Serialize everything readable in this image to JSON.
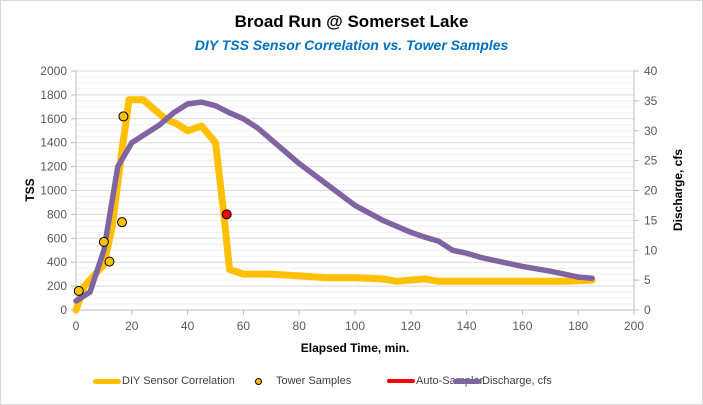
{
  "chart_data": {
    "type": "line",
    "title": "Broad Run @ Somerset Lake",
    "subtitle": "DIY TSS Sensor Correlation vs. Tower Samples",
    "xlabel": "Elapsed Time, min.",
    "ylabel": "TSS",
    "y2label": "Discharge, cfs",
    "xlim": [
      0,
      200
    ],
    "ylim": [
      0,
      2000
    ],
    "y2lim": [
      0,
      40
    ],
    "x_ticks": [
      "0",
      "20",
      "40",
      "60",
      "80",
      "100",
      "120",
      "140",
      "160",
      "180",
      "200"
    ],
    "y_ticks": [
      "0",
      "200",
      "400",
      "600",
      "800",
      "1000",
      "1200",
      "1400",
      "1600",
      "1800",
      "2000"
    ],
    "y2_ticks": [
      "0",
      "5",
      "10",
      "15",
      "20",
      "25",
      "30",
      "35",
      "40"
    ],
    "grid": true,
    "legend_position": "bottom",
    "series": [
      {
        "name": "DIY Sensor Correlation",
        "kind": "line",
        "axis": "left",
        "color": "#ffc000",
        "points": [
          [
            0,
            0
          ],
          [
            3,
            200
          ],
          [
            10,
            380
          ],
          [
            13,
            700
          ],
          [
            16,
            1250
          ],
          [
            19,
            1760
          ],
          [
            24,
            1760
          ],
          [
            32,
            1600
          ],
          [
            36,
            1560
          ],
          [
            40,
            1500
          ],
          [
            45,
            1540
          ],
          [
            50,
            1400
          ],
          [
            53,
            800
          ],
          [
            55,
            340
          ],
          [
            60,
            300
          ],
          [
            70,
            300
          ],
          [
            80,
            285
          ],
          [
            90,
            270
          ],
          [
            100,
            270
          ],
          [
            110,
            260
          ],
          [
            115,
            240
          ],
          [
            125,
            260
          ],
          [
            130,
            240
          ],
          [
            140,
            240
          ],
          [
            150,
            240
          ],
          [
            160,
            240
          ],
          [
            175,
            240
          ],
          [
            185,
            250
          ]
        ]
      },
      {
        "name": "Tower Samples",
        "kind": "scatter",
        "axis": "left",
        "color": "#ffc000",
        "points": [
          [
            1,
            160
          ],
          [
            10,
            570
          ],
          [
            12,
            405
          ],
          [
            16.5,
            735
          ],
          [
            17,
            1620
          ]
        ]
      },
      {
        "name": "Auto-Sampler",
        "kind": "scatter",
        "axis": "left",
        "color": "#ff0000",
        "points": [
          [
            54,
            800
          ]
        ]
      },
      {
        "name": "Discharge, cfs",
        "kind": "line",
        "axis": "right",
        "color": "#8064a2",
        "points": [
          [
            0,
            1.5
          ],
          [
            5,
            3
          ],
          [
            10,
            10
          ],
          [
            15,
            24
          ],
          [
            20,
            28
          ],
          [
            25,
            29.5
          ],
          [
            30,
            31
          ],
          [
            35,
            33
          ],
          [
            40,
            34.5
          ],
          [
            45,
            34.8
          ],
          [
            50,
            34.2
          ],
          [
            55,
            33
          ],
          [
            60,
            32
          ],
          [
            65,
            30.5
          ],
          [
            70,
            28.5
          ],
          [
            80,
            24.5
          ],
          [
            90,
            21
          ],
          [
            100,
            17.5
          ],
          [
            110,
            15
          ],
          [
            120,
            13
          ],
          [
            125,
            12.2
          ],
          [
            130,
            11.5
          ],
          [
            135,
            10
          ],
          [
            140,
            9.5
          ],
          [
            145,
            8.8
          ],
          [
            150,
            8.3
          ],
          [
            160,
            7.3
          ],
          [
            170,
            6.5
          ],
          [
            180,
            5.5
          ],
          [
            185,
            5.3
          ]
        ]
      }
    ]
  },
  "legend": [
    {
      "label": "DIY Sensor Correlation",
      "marker": "line",
      "color": "#ffc000"
    },
    {
      "label": "Tower Samples",
      "marker": "dot",
      "color": "#ffc000"
    },
    {
      "label": "Auto-Sampler",
      "marker": "line",
      "color": "#ff0000"
    },
    {
      "label": "Discharge, cfs",
      "marker": "line",
      "color": "#8064a2"
    }
  ]
}
